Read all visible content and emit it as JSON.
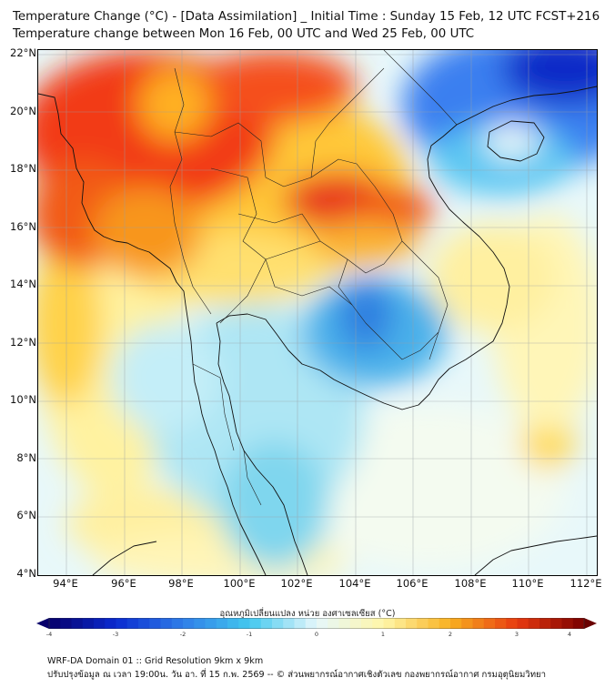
{
  "header": {
    "line1": "Temperature Change (°C) - [Data Assimilation] _ Initial Time : Sunday 15 Feb, 12 UTC FCST+216",
    "line2": "Temperature change between Mon 16 Feb, 00 UTC and Wed 25 Feb, 00 UTC"
  },
  "map": {
    "lat_labels": [
      "22°N",
      "20°N",
      "18°N",
      "16°N",
      "14°N",
      "12°N",
      "10°N",
      "8°N",
      "6°N",
      "4°N"
    ],
    "lon_labels": [
      "94°E",
      "96°E",
      "98°E",
      "100°E",
      "102°E",
      "104°E",
      "106°E",
      "108°E",
      "110°E",
      "112°E"
    ]
  },
  "colorbar": {
    "label": "อุณหภูมิเปลี่ยนแปลง หน่วย องศาเซลเซียส (°C)",
    "ticks": [
      "-4",
      "-3",
      "-2",
      "-1",
      "0",
      "1",
      "2",
      "3",
      "4"
    ],
    "colors": [
      "#08006b",
      "#0a2bd0",
      "#2f7ee8",
      "#43c8ef",
      "#e6f7fb",
      "#fff6a8",
      "#f8b020",
      "#e83a10",
      "#7a0000"
    ]
  },
  "footer": {
    "line1": "WRF-DA Domain 01 :: Grid Resolution 9km x 9km",
    "line2": "ปรับปรุงข้อมูล ณ เวลา 19:00น. วัน อา. ที่ 15 ก.พ. 2569 -- © ส่วนพยากรณ์อากาศเชิงตัวเลข กองพยากรณ์อากาศ กรมอุตุนิยมวิทยา"
  }
}
